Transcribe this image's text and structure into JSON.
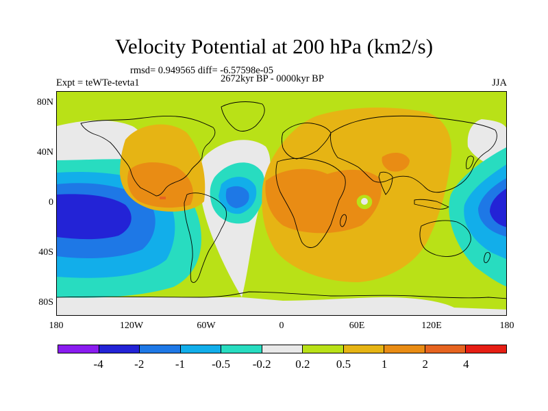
{
  "header": {
    "title": "Velocity Potential at 200 hPa (km2/s)",
    "stats": "rmsd= 0.949565 diff= -6.57598e-05",
    "period": "2672kyr BP - 0000kyr BP",
    "experiment": "Expt = teWTe-tevta1",
    "season": "JJA"
  },
  "axes": {
    "lat_labels": [
      "80N",
      "40N",
      "0",
      "40S",
      "80S"
    ],
    "lon_labels": [
      "180",
      "120W",
      "60W",
      "0",
      "60E",
      "120E",
      "180"
    ]
  },
  "colorbar": {
    "colors": [
      "#8a1cf0",
      "#2323d6",
      "#1e78e6",
      "#12aeea",
      "#28dcc0",
      "#e9e9e9",
      "#b9e117",
      "#e6b414",
      "#e98c14",
      "#e66420",
      "#e61e14"
    ],
    "labels": [
      "-4",
      "-2",
      "-1",
      "-0.5",
      "-0.2",
      "0.2",
      "0.5",
      "1",
      "2",
      "4"
    ]
  }
}
